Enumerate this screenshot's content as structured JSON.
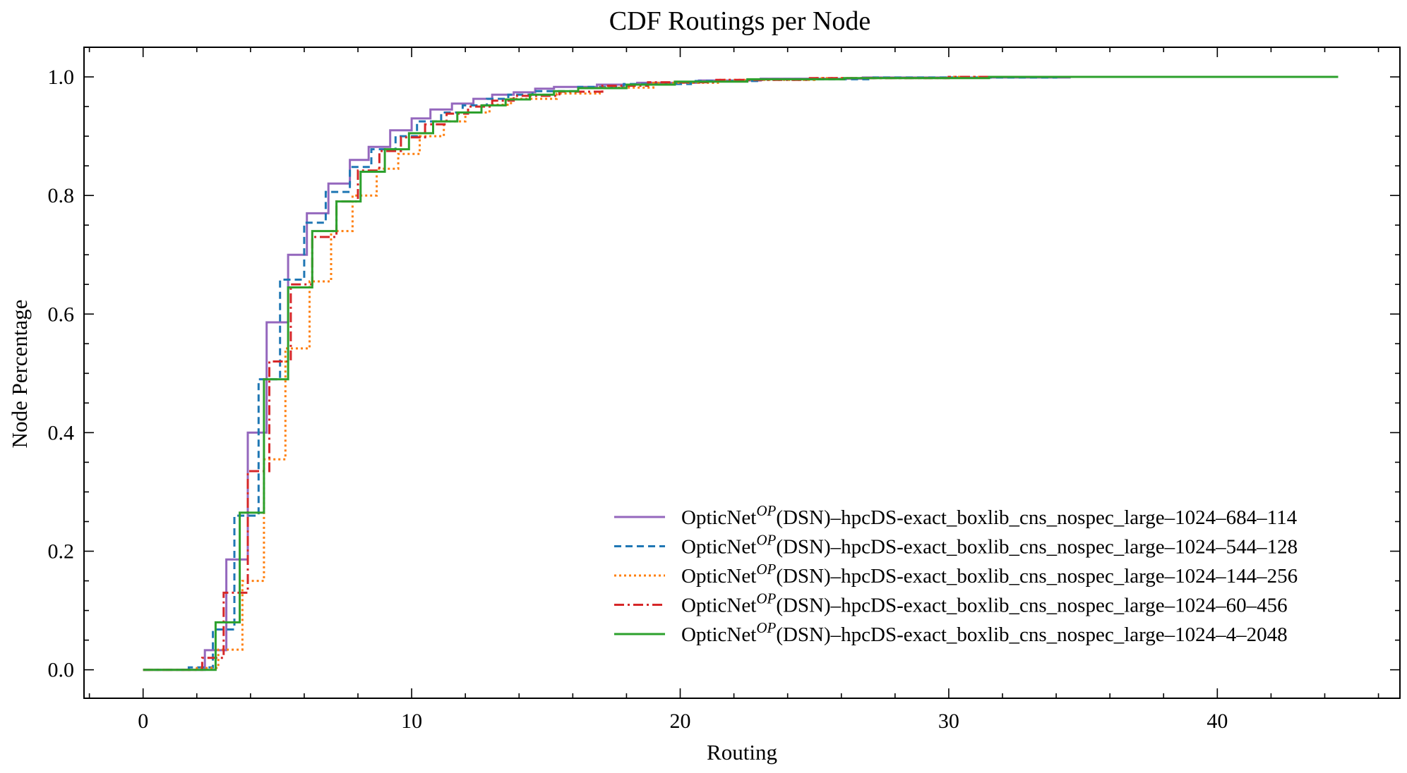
{
  "chart_data": {
    "type": "line",
    "step": true,
    "title": "CDF Routings per Node",
    "xlabel": "Routing",
    "ylabel": "Node Percentage",
    "xlim": [
      -2.2,
      46.8
    ],
    "ylim": [
      -0.048,
      1.05
    ],
    "xticks": [
      0,
      10,
      20,
      30,
      40
    ],
    "xtick_labels": [
      "0",
      "10",
      "20",
      "30",
      "40"
    ],
    "yticks": [
      0.0,
      0.2,
      0.4,
      0.6,
      0.8,
      1.0
    ],
    "ytick_labels": [
      "0.0",
      "0.2",
      "0.4",
      "0.6",
      "0.8",
      "1.0"
    ],
    "grid": false,
    "legend_position": "lower-right",
    "series": [
      {
        "name": "OpticNet^OP(DSN)–hpcDS-exact_boxlib_cns_nospec_large–1024–684–114",
        "label_parts": [
          "OpticNet",
          "OP",
          "(DSN)–hpcDS-exact_boxlib_cns_nospec_large–1024–684–114"
        ],
        "color": "#9467bd",
        "dash": "solid",
        "x": [
          0,
          2.3,
          3.1,
          3.9,
          4.6,
          5.4,
          6.1,
          6.9,
          7.7,
          8.4,
          9.2,
          10.0,
          10.7,
          11.5,
          12.3,
          13.0,
          13.8,
          14.6,
          15.3,
          16.9,
          18.4,
          20.7,
          23.0,
          26.8,
          34.5,
          44.5
        ],
        "y": [
          0,
          0.033,
          0.186,
          0.4,
          0.586,
          0.7,
          0.77,
          0.82,
          0.86,
          0.882,
          0.91,
          0.93,
          0.945,
          0.955,
          0.963,
          0.97,
          0.974,
          0.98,
          0.983,
          0.987,
          0.99,
          0.994,
          0.997,
          0.999,
          1.0,
          1.0
        ]
      },
      {
        "name": "OpticNet^OP(DSN)–hpcDS-exact_boxlib_cns_nospec_large–1024–544–128",
        "label_parts": [
          "OpticNet",
          "OP",
          "(DSN)–hpcDS-exact_boxlib_cns_nospec_large–1024–544–128"
        ],
        "color": "#1f77b4",
        "dash": "10,6",
        "x": [
          0,
          1.7,
          2.6,
          3.4,
          4.3,
          5.1,
          6.0,
          6.8,
          7.7,
          8.5,
          9.4,
          10.2,
          11.1,
          11.9,
          12.8,
          13.6,
          14.5,
          16.2,
          17.9,
          20.4,
          23.0,
          27.2,
          34.0,
          44.5
        ],
        "y": [
          0,
          0.004,
          0.068,
          0.26,
          0.49,
          0.658,
          0.754,
          0.806,
          0.848,
          0.878,
          0.9,
          0.925,
          0.94,
          0.952,
          0.963,
          0.97,
          0.976,
          0.983,
          0.988,
          0.993,
          0.996,
          0.999,
          1.0,
          1.0
        ]
      },
      {
        "name": "OpticNet^OP(DSN)–hpcDS-exact_boxlib_cns_nospec_large–1024–144–256",
        "label_parts": [
          "OpticNet",
          "OP",
          "(DSN)–hpcDS-exact_boxlib_cns_nospec_large–1024–144–256"
        ],
        "color": "#ff7f0e",
        "dash": "3,4",
        "x": [
          0,
          2.0,
          2.8,
          3.7,
          4.5,
          5.3,
          6.2,
          7.0,
          7.8,
          8.7,
          9.5,
          10.3,
          11.2,
          12.0,
          12.9,
          13.7,
          15.4,
          17.0,
          19.0,
          21.5,
          25.0,
          30.0,
          44.5
        ],
        "y": [
          0,
          0.003,
          0.034,
          0.15,
          0.355,
          0.542,
          0.655,
          0.74,
          0.8,
          0.845,
          0.87,
          0.9,
          0.925,
          0.94,
          0.953,
          0.963,
          0.972,
          0.982,
          0.99,
          0.995,
          0.998,
          1.0,
          1.0
        ]
      },
      {
        "name": "OpticNet^OP(DSN)–hpcDS-exact_boxlib_cns_nospec_large–1024–60–456",
        "label_parts": [
          "OpticNet",
          "OP",
          "(DSN)–hpcDS-exact_boxlib_cns_nospec_large–1024–60–456"
        ],
        "color": "#d62728",
        "dash": "14,5,3,5",
        "x": [
          0,
          2.2,
          3.0,
          3.9,
          4.7,
          5.5,
          6.3,
          7.2,
          8.0,
          8.8,
          9.6,
          10.5,
          11.3,
          12.1,
          13.0,
          13.8,
          15.5,
          17.1,
          18.8,
          21.3,
          24.7,
          30.0,
          44.5
        ],
        "y": [
          0,
          0.02,
          0.13,
          0.335,
          0.52,
          0.65,
          0.73,
          0.79,
          0.842,
          0.875,
          0.898,
          0.92,
          0.938,
          0.95,
          0.96,
          0.968,
          0.975,
          0.985,
          0.991,
          0.995,
          0.998,
          1.0,
          1.0
        ]
      },
      {
        "name": "OpticNet^OP(DSN)–hpcDS-exact_boxlib_cns_nospec_large–1024–4–2048",
        "label_parts": [
          "OpticNet",
          "OP",
          "(DSN)–hpcDS-exact_boxlib_cns_nospec_large–1024–4–2048"
        ],
        "color": "#2ca02c",
        "dash": "solid",
        "x": [
          0,
          2.7,
          3.6,
          4.5,
          5.4,
          6.3,
          7.2,
          8.1,
          9.0,
          9.9,
          10.8,
          11.7,
          12.6,
          13.5,
          14.4,
          15.3,
          16.2,
          18.0,
          19.8,
          22.5,
          26.1,
          31.5,
          44.5
        ],
        "y": [
          0,
          0.08,
          0.265,
          0.49,
          0.645,
          0.74,
          0.79,
          0.84,
          0.878,
          0.905,
          0.925,
          0.94,
          0.952,
          0.962,
          0.97,
          0.976,
          0.981,
          0.987,
          0.992,
          0.996,
          0.998,
          1.0,
          1.0
        ]
      }
    ]
  }
}
